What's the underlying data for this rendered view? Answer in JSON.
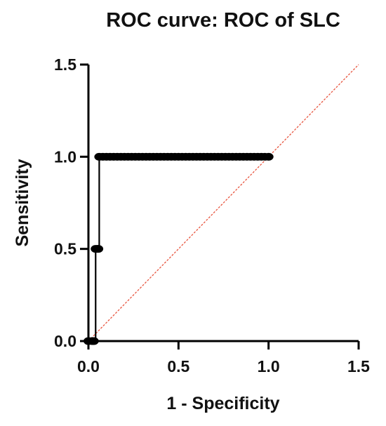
{
  "chart_data": {
    "type": "line",
    "title": "ROC curve: ROC of SLC",
    "xlabel": "1 - Specificity",
    "ylabel": "Sensitivity",
    "xlim": [
      0,
      1.5
    ],
    "ylim": [
      0,
      1.5
    ],
    "xticks": [
      "0.0",
      "0.5",
      "1.0",
      "1.5"
    ],
    "yticks": [
      "0.0",
      "0.5",
      "1.0",
      "1.5"
    ],
    "grid": false,
    "legend": "none",
    "series": [
      {
        "style": "step-line-with-markers",
        "color": "#000000",
        "x": [
          0.0,
          0.02,
          0.03,
          0.04,
          0.05,
          0.055,
          0.06,
          0.08,
          0.1,
          0.12,
          0.14,
          0.16,
          0.18,
          0.2,
          0.22,
          0.24,
          0.26,
          0.28,
          0.3,
          0.32,
          0.34,
          0.36,
          0.38,
          0.4,
          0.42,
          0.44,
          0.46,
          0.48,
          0.5,
          0.52,
          0.54,
          0.56,
          0.58,
          0.6,
          0.62,
          0.64,
          0.66,
          0.68,
          0.7,
          0.72,
          0.74,
          0.76,
          0.78,
          0.8,
          0.82,
          0.84,
          0.86,
          0.88,
          0.9,
          0.92,
          0.94,
          0.96,
          0.98,
          1.0
        ],
        "y": [
          0.0,
          0.0,
          0.0,
          0.5,
          0.5,
          0.5,
          1.0,
          1.0,
          1.0,
          1.0,
          1.0,
          1.0,
          1.0,
          1.0,
          1.0,
          1.0,
          1.0,
          1.0,
          1.0,
          1.0,
          1.0,
          1.0,
          1.0,
          1.0,
          1.0,
          1.0,
          1.0,
          1.0,
          1.0,
          1.0,
          1.0,
          1.0,
          1.0,
          1.0,
          1.0,
          1.0,
          1.0,
          1.0,
          1.0,
          1.0,
          1.0,
          1.0,
          1.0,
          1.0,
          1.0,
          1.0,
          1.0,
          1.0,
          1.0,
          1.0,
          1.0,
          1.0,
          1.0,
          1.0
        ]
      },
      {
        "style": "dashed-reference-line",
        "color": "#e8553f",
        "x": [
          0,
          1.5
        ],
        "y": [
          0,
          1.5
        ]
      }
    ]
  }
}
